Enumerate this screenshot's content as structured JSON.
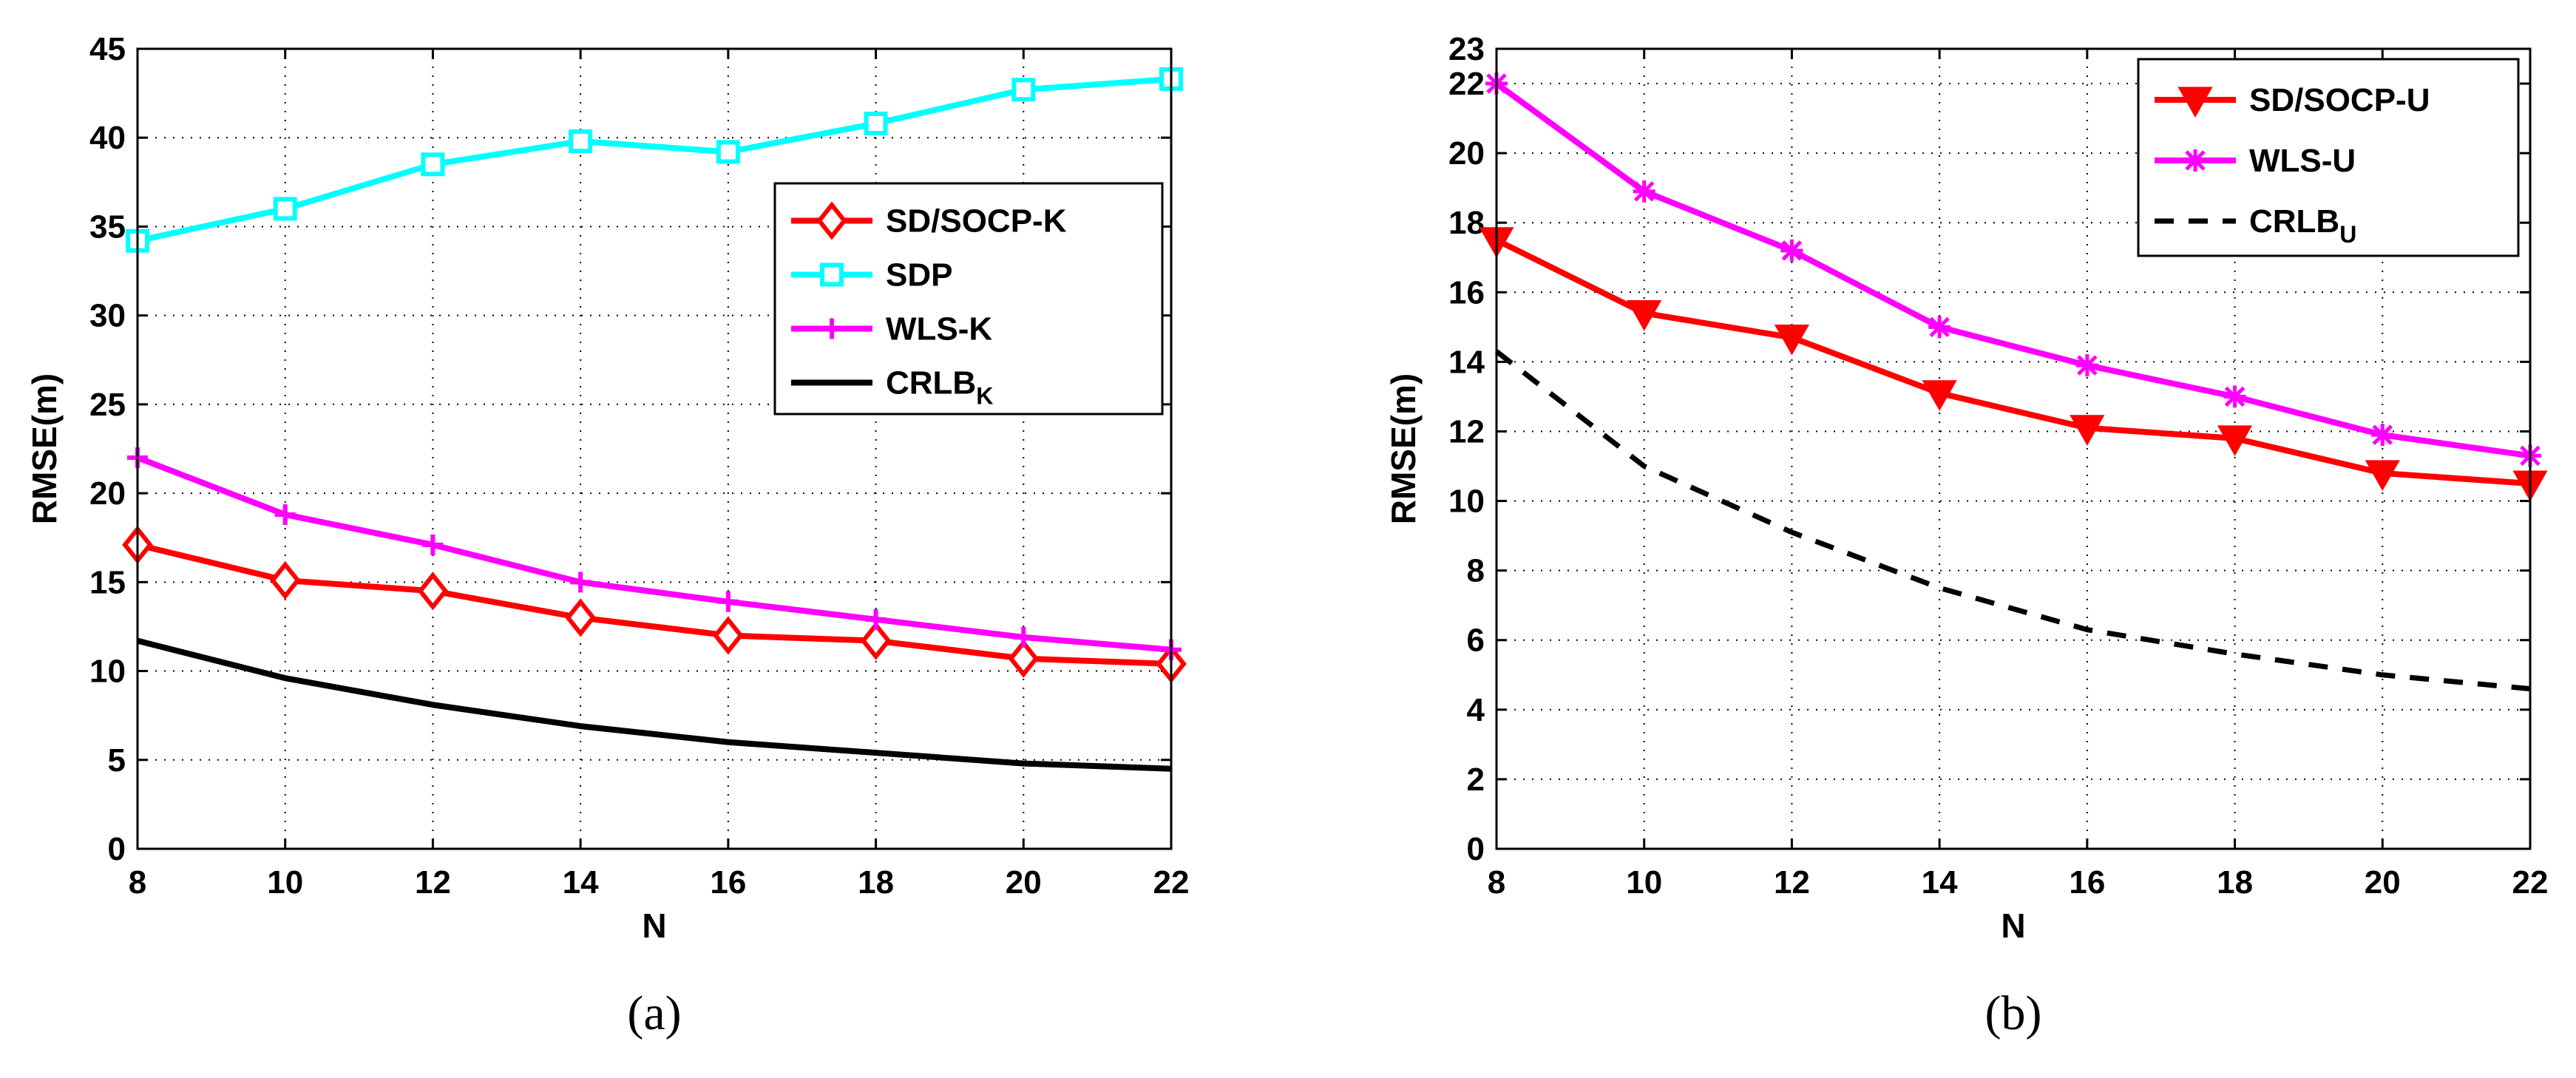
{
  "chart_data": [
    {
      "type": "line",
      "panel_label": "(a)",
      "xlabel": "N",
      "ylabel": "RMSE(m)",
      "xlim": [
        8,
        22
      ],
      "ylim": [
        0,
        45
      ],
      "xticks": [
        8,
        10,
        12,
        14,
        16,
        18,
        20,
        22
      ],
      "yticks": [
        0,
        5,
        10,
        15,
        20,
        25,
        30,
        35,
        40,
        45
      ],
      "grid": true,
      "legend_position": "right-center",
      "x": [
        8,
        10,
        12,
        14,
        16,
        18,
        20,
        22
      ],
      "series": [
        {
          "name": "SD/SOCP-K",
          "legend_main": "SD/SOCP-K",
          "legend_sub": "",
          "color": "#ff0000",
          "marker": "diamond",
          "line": "solid",
          "values": [
            17.1,
            15.1,
            14.5,
            13.0,
            12.0,
            11.7,
            10.7,
            10.4
          ]
        },
        {
          "name": "SDP",
          "legend_main": "SDP",
          "legend_sub": "",
          "color": "#00ffff",
          "marker": "square",
          "line": "solid",
          "values": [
            34.2,
            36.0,
            38.5,
            39.8,
            39.2,
            40.8,
            42.7,
            43.3
          ]
        },
        {
          "name": "WLS-K",
          "legend_main": "WLS-K",
          "legend_sub": "",
          "color": "#ff00ff",
          "marker": "plus",
          "line": "solid",
          "values": [
            22.0,
            18.8,
            17.1,
            15.0,
            13.9,
            12.9,
            11.9,
            11.2
          ]
        },
        {
          "name": "CRLB_K",
          "legend_main": "CRLB",
          "legend_sub": "K",
          "color": "#000000",
          "marker": "none",
          "line": "solid",
          "values": [
            11.7,
            9.6,
            8.1,
            6.9,
            6.0,
            5.4,
            4.8,
            4.5
          ]
        }
      ]
    },
    {
      "type": "line",
      "panel_label": "(b)",
      "xlabel": "N",
      "ylabel": "RMSE(m)",
      "xlim": [
        8,
        22
      ],
      "ylim": [
        0,
        23
      ],
      "xticks": [
        8,
        10,
        12,
        14,
        16,
        18,
        20,
        22
      ],
      "yticks": [
        0,
        2,
        4,
        6,
        8,
        10,
        12,
        14,
        16,
        18,
        20,
        22,
        23
      ],
      "grid": true,
      "legend_position": "top-right",
      "x": [
        8,
        10,
        12,
        14,
        16,
        18,
        20,
        22
      ],
      "series": [
        {
          "name": "SD/SOCP-U",
          "legend_main": "SD/SOCP-U",
          "legend_sub": "",
          "color": "#ff0000",
          "marker": "triangle-down",
          "line": "solid",
          "values": [
            17.5,
            15.4,
            14.7,
            13.1,
            12.1,
            11.8,
            10.8,
            10.5
          ]
        },
        {
          "name": "WLS-U",
          "legend_main": "WLS-U",
          "legend_sub": "",
          "color": "#ff00ff",
          "marker": "asterisk",
          "line": "solid",
          "values": [
            22.0,
            18.9,
            17.2,
            15.0,
            13.9,
            13.0,
            11.9,
            11.3
          ]
        },
        {
          "name": "CRLB_U",
          "legend_main": "CRLB",
          "legend_sub": "U",
          "color": "#000000",
          "marker": "none",
          "line": "dashed",
          "values": [
            14.3,
            11.0,
            9.1,
            7.5,
            6.3,
            5.6,
            5.0,
            4.6
          ]
        }
      ]
    }
  ]
}
